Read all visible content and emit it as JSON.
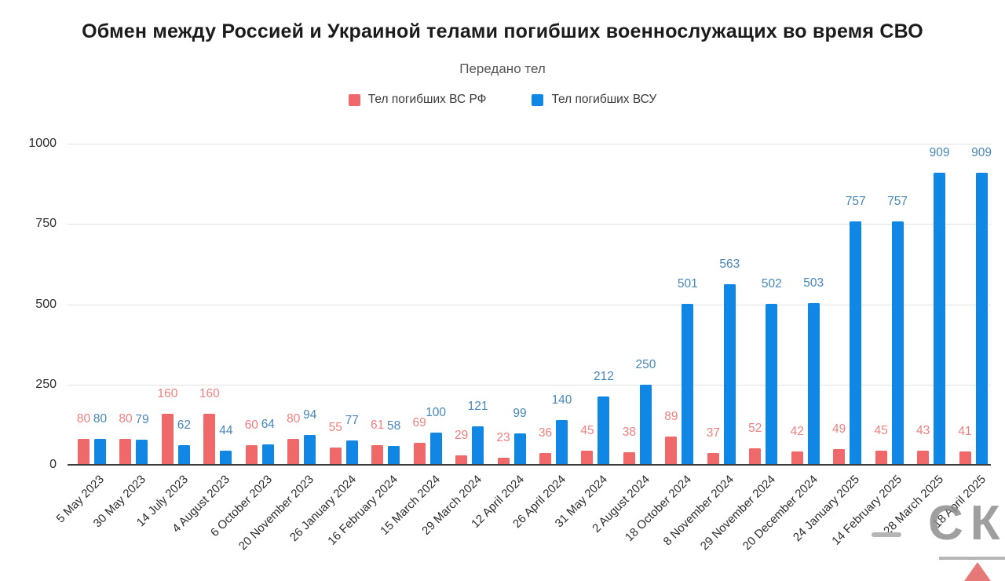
{
  "title": "Обмен между Россией и Украиной телами погибших военнослужащих во время СВО",
  "subtitle": "Передано тел",
  "legend": [
    {
      "label": "Тел погибших ВС  РФ",
      "color": "#f0696a"
    },
    {
      "label": "Тел погибших ВСУ",
      "color": "#1187e5"
    }
  ],
  "watermark": {
    "text": "СК"
  },
  "chart_data": {
    "type": "bar",
    "title": "Обмен между Россией и Украиной телами погибших военнослужащих во время СВО",
    "subtitle": "Передано тел",
    "categories": [
      "5 May 2023",
      "30 May 2023",
      "14 July 2023",
      "4 August 2023",
      "6 October 2023",
      "20 November 2023",
      "26 January 2024",
      "16 February 2024",
      "15 March 2024",
      "29 March 2024",
      "12 April 2024",
      "26 April 2024",
      "31 May 2024",
      "2 August 2024",
      "18 October 2024",
      "8 November 2024",
      "29 November 2024",
      "20 December 2024",
      "24 January 2025",
      "14 February 2025",
      "28 March 2025",
      "18 April 2025"
    ],
    "series": [
      {
        "name": "Тел погибших ВС  РФ",
        "color": "#f0696a",
        "label_color": "#f08080",
        "values": [
          80,
          80,
          160,
          160,
          60,
          80,
          55,
          61,
          69,
          29,
          23,
          36,
          45,
          38,
          89,
          37,
          52,
          42,
          49,
          45,
          43,
          41
        ]
      },
      {
        "name": "Тел погибших ВСУ",
        "color": "#1187e5",
        "label_color": "#4786b8",
        "values": [
          80,
          79,
          62,
          44,
          64,
          94,
          77,
          58,
          100,
          121,
          99,
          140,
          212,
          250,
          501,
          563,
          502,
          503,
          757,
          757,
          909,
          909
        ]
      }
    ],
    "xlabel": "",
    "ylabel": "",
    "yticks": [
      0,
      250,
      500,
      750,
      1000
    ],
    "ylim": [
      0,
      1000
    ],
    "grid": true,
    "legend_position": "top"
  }
}
